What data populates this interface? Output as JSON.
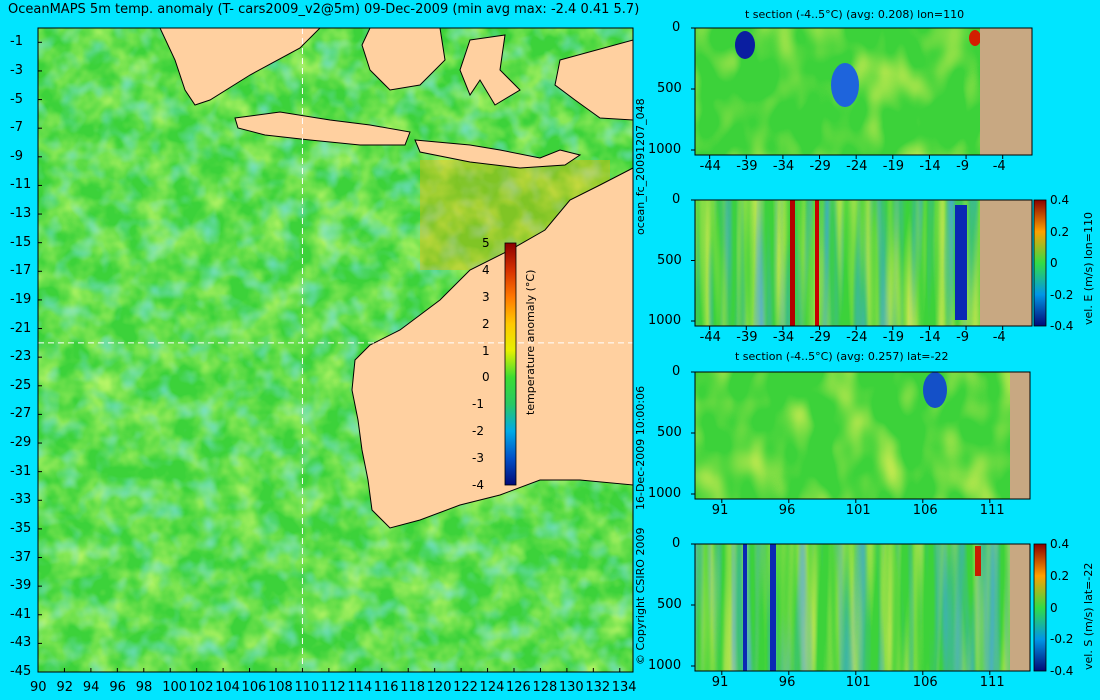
{
  "title": "OceanMAPS 5m temp. anomaly (T- cars2009_v2@5m) 09-Dec-2009 (min avg max: -2.4 0.41 5.7)",
  "map": {
    "lat_ticks": [
      "-1",
      "-3",
      "-5",
      "-7",
      "-9",
      "-11",
      "-13",
      "-15",
      "-17",
      "-19",
      "-21",
      "-23",
      "-25",
      "-27",
      "-29",
      "-31",
      "-33",
      "-35",
      "-37",
      "-39",
      "-41",
      "-43",
      "-45"
    ],
    "lon_ticks": [
      "90",
      "92",
      "94",
      "96",
      "98",
      "100",
      "102",
      "104",
      "106",
      "108",
      "110",
      "112",
      "114",
      "116",
      "118",
      "120",
      "122",
      "124",
      "126",
      "128",
      "130",
      "132",
      "134"
    ],
    "crosshair": {
      "lon": 110,
      "lat": -22
    },
    "colorbar": {
      "label": "temperature anomaly (°C)",
      "ticks": [
        "5",
        "4",
        "3",
        "2",
        "1",
        "0",
        "-1",
        "-2",
        "-3",
        "-4"
      ],
      "colors": [
        "#8b0000",
        "#d63000",
        "#ff7800",
        "#ffc800",
        "#e6f000",
        "#3cdc32",
        "#28c864",
        "#00aae6",
        "#0050c8",
        "#000a78"
      ]
    },
    "land_color": "#ffd0a0"
  },
  "panels": [
    {
      "title": "t section (-4..5°C) (avg: 0.208) lon=110",
      "x_ticks": [
        "-44",
        "-39",
        "-34",
        "-29",
        "-24",
        "-19",
        "-14",
        "-9",
        "-4"
      ],
      "y_ticks": [
        "0",
        "500",
        "1000"
      ],
      "side_label": ""
    },
    {
      "title": "",
      "x_ticks": [
        "-44",
        "-39",
        "-34",
        "-29",
        "-24",
        "-19",
        "-14",
        "-9",
        "-4"
      ],
      "y_ticks": [
        "0",
        "500",
        "1000"
      ],
      "side_label": "vel. E (m/s) lon=110",
      "colorbar_ticks": [
        "0.4",
        "0.2",
        "0",
        "-0.2",
        "-0.4"
      ]
    },
    {
      "title": "t section (-4..5°C) (avg: 0.257) lat=-22",
      "x_ticks": [
        "91",
        "96",
        "101",
        "106",
        "111"
      ],
      "y_ticks": [
        "0",
        "500",
        "1000"
      ],
      "side_label": ""
    },
    {
      "title": "",
      "x_ticks": [
        "91",
        "96",
        "101",
        "106",
        "111"
      ],
      "y_ticks": [
        "0",
        "500",
        "1000"
      ],
      "side_label": "vel. S (m/s) lat=-22",
      "colorbar_ticks": [
        "0.4",
        "0.2",
        "0",
        "-0.2",
        "-0.4"
      ]
    }
  ],
  "vertical_texts": {
    "run_id": "ocean_fc_20091207_048",
    "timestamp": "16-Dec-2009 10:00:06",
    "copyright": "© Copyright CSIRO 2009"
  }
}
